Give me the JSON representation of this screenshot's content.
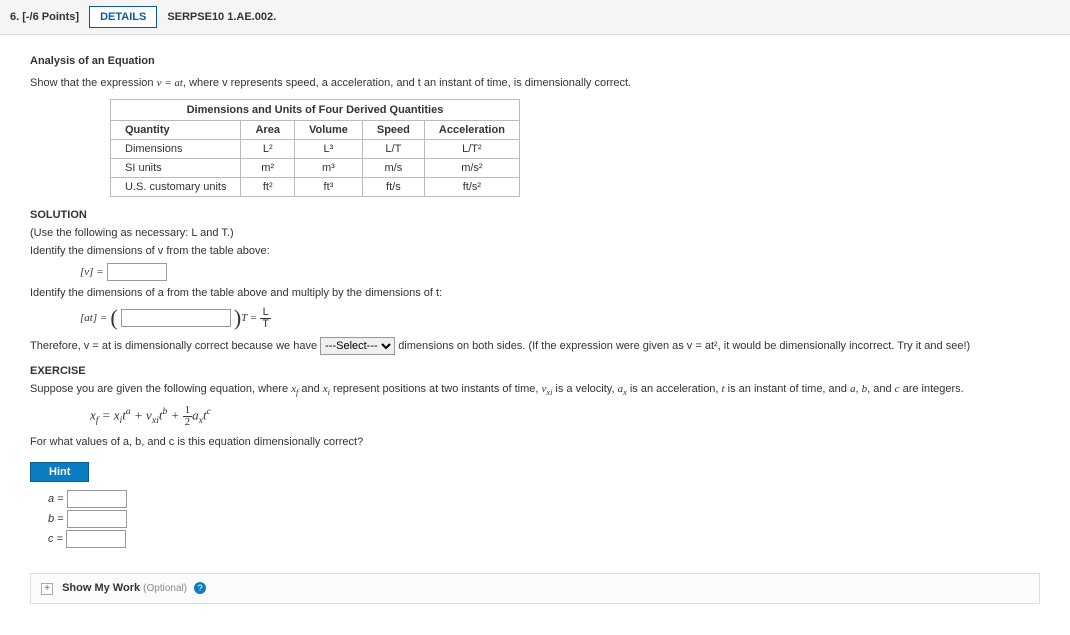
{
  "header": {
    "points": "6. [-/6 Points]",
    "details": "DETAILS",
    "source": "SERPSE10 1.AE.002."
  },
  "title": "Analysis of an Equation",
  "prompt_pre": "Show that the expression ",
  "prompt_eq": "v = at",
  "prompt_post": ", where v represents speed, a acceleration, and t an instant of time, is dimensionally correct.",
  "table": {
    "caption": "Dimensions and Units of Four Derived Quantities",
    "cols": [
      "Quantity",
      "Area",
      "Volume",
      "Speed",
      "Acceleration"
    ],
    "rows": [
      [
        "Dimensions",
        "L²",
        "L³",
        "L/T",
        "L/T²"
      ],
      [
        "SI units",
        "m²",
        "m³",
        "m/s",
        "m/s²"
      ],
      [
        "U.S. customary units",
        "ft²",
        "ft³",
        "ft/s",
        "ft/s²"
      ]
    ]
  },
  "solution_label": "SOLUTION",
  "use_following": "(Use the following as necessary: L and T.)",
  "identify_v": "Identify the dimensions of v from the table above:",
  "bracket_v": "[v] =",
  "identify_at": "Identify the dimensions of a from the table above and multiply by the dimensions of t:",
  "bracket_at": "[at] =",
  "t_eq": "T =",
  "frac_num": "L",
  "frac_den": "T",
  "therefore_pre": "Therefore, v = at is dimensionally correct because we have ",
  "select_placeholder": "---Select---",
  "therefore_post": " dimensions on both sides. (If the expression were given as v = at², it would be dimensionally incorrect. Try it and see!)",
  "exercise_label": "EXERCISE",
  "exercise_text": "Suppose you are given the following equation, where xf and xi represent positions at two instants of time, vxi is a velocity, ax is an acceleration, t is an instant of time, and a, b, and c are integers.",
  "equation_html": "x<sub>f</sub> = x<sub>i</sub>t<sup>a</sup> + v<sub>xi</sub>t<sup>b</sup> + <span class='frac'><span class='num'>1</span><span class='den'>2</span></span>a<sub>x</sub>t<sup>c</sup>",
  "for_what": "For what values of a, b, and c is this equation dimensionally correct?",
  "hint": "Hint",
  "a_label": "a =",
  "b_label": "b =",
  "c_label": "c =",
  "show_work": "Show My Work",
  "optional": "(Optional)",
  "q": "?"
}
